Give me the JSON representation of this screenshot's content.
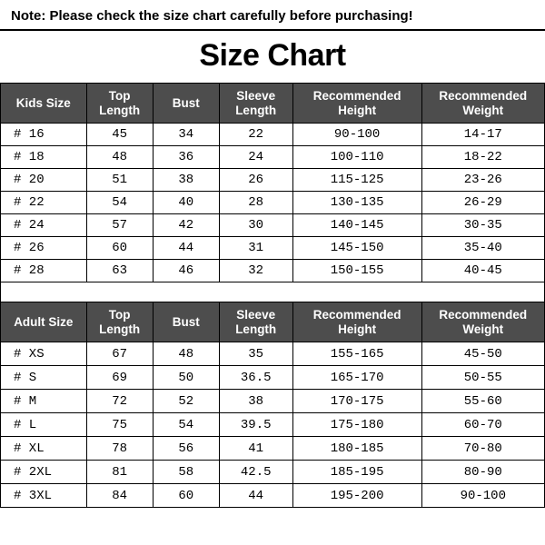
{
  "note": "Note: Please check the size chart carefully before purchasing!",
  "title": "Size Chart",
  "colors": {
    "header_bg": "#4d4d4d",
    "header_fg": "#ffffff",
    "border": "#000000",
    "cell_bg": "#ffffff",
    "cell_fg": "#000000"
  },
  "column_widths_pct": [
    15.8,
    12.2,
    12.2,
    13.5,
    23.7,
    22.6
  ],
  "kids": {
    "headers": [
      "Kids Size",
      "Top Length",
      "Bust",
      "Sleeve Length",
      "Recommended Height",
      "Recommended Weight"
    ],
    "rows": [
      [
        "# 16",
        "45",
        "34",
        "22",
        "90-100",
        "14-17"
      ],
      [
        "# 18",
        "48",
        "36",
        "24",
        "100-110",
        "18-22"
      ],
      [
        "# 20",
        "51",
        "38",
        "26",
        "115-125",
        "23-26"
      ],
      [
        "# 22",
        "54",
        "40",
        "28",
        "130-135",
        "26-29"
      ],
      [
        "# 24",
        "57",
        "42",
        "30",
        "140-145",
        "30-35"
      ],
      [
        "# 26",
        "60",
        "44",
        "31",
        "145-150",
        "35-40"
      ],
      [
        "# 28",
        "63",
        "46",
        "32",
        "150-155",
        "40-45"
      ]
    ]
  },
  "adult": {
    "headers": [
      "Adult Size",
      "Top Length",
      "Bust",
      "Sleeve Length",
      "Recommended Height",
      "Recommended Weight"
    ],
    "rows": [
      [
        "# XS",
        "67",
        "48",
        "35",
        "155-165",
        "45-50"
      ],
      [
        "# S",
        "69",
        "50",
        "36.5",
        "165-170",
        "50-55"
      ],
      [
        "# M",
        "72",
        "52",
        "38",
        "170-175",
        "55-60"
      ],
      [
        "# L",
        "75",
        "54",
        "39.5",
        "175-180",
        "60-70"
      ],
      [
        "# XL",
        "78",
        "56",
        "41",
        "180-185",
        "70-80"
      ],
      [
        "# 2XL",
        "81",
        "58",
        "42.5",
        "185-195",
        "80-90"
      ],
      [
        "# 3XL",
        "84",
        "60",
        "44",
        "195-200",
        "90-100"
      ]
    ]
  }
}
